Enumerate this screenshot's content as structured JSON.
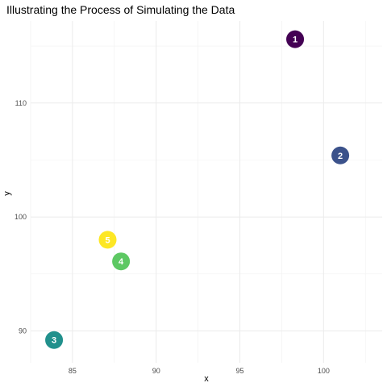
{
  "chart_data": {
    "type": "scatter",
    "title": "Illustrating the Process of Simulating the Data",
    "xlabel": "x",
    "ylabel": "y",
    "xlim": [
      82.5,
      103.5
    ],
    "ylim": [
      87.2,
      117.2
    ],
    "x_ticks": [
      85,
      90,
      95,
      100
    ],
    "y_ticks": [
      90,
      100,
      110
    ],
    "grid": true,
    "legend": "none",
    "points": [
      {
        "label": "1",
        "x": 98.3,
        "y": 115.6,
        "color": "#440154"
      },
      {
        "label": "2",
        "x": 101.0,
        "y": 105.4,
        "color": "#3B528B"
      },
      {
        "label": "3",
        "x": 83.9,
        "y": 89.2,
        "color": "#21908C"
      },
      {
        "label": "4",
        "x": 87.9,
        "y": 96.1,
        "color": "#5DC863"
      },
      {
        "label": "5",
        "x": 87.1,
        "y": 98.0,
        "color": "#FDE725"
      }
    ]
  }
}
